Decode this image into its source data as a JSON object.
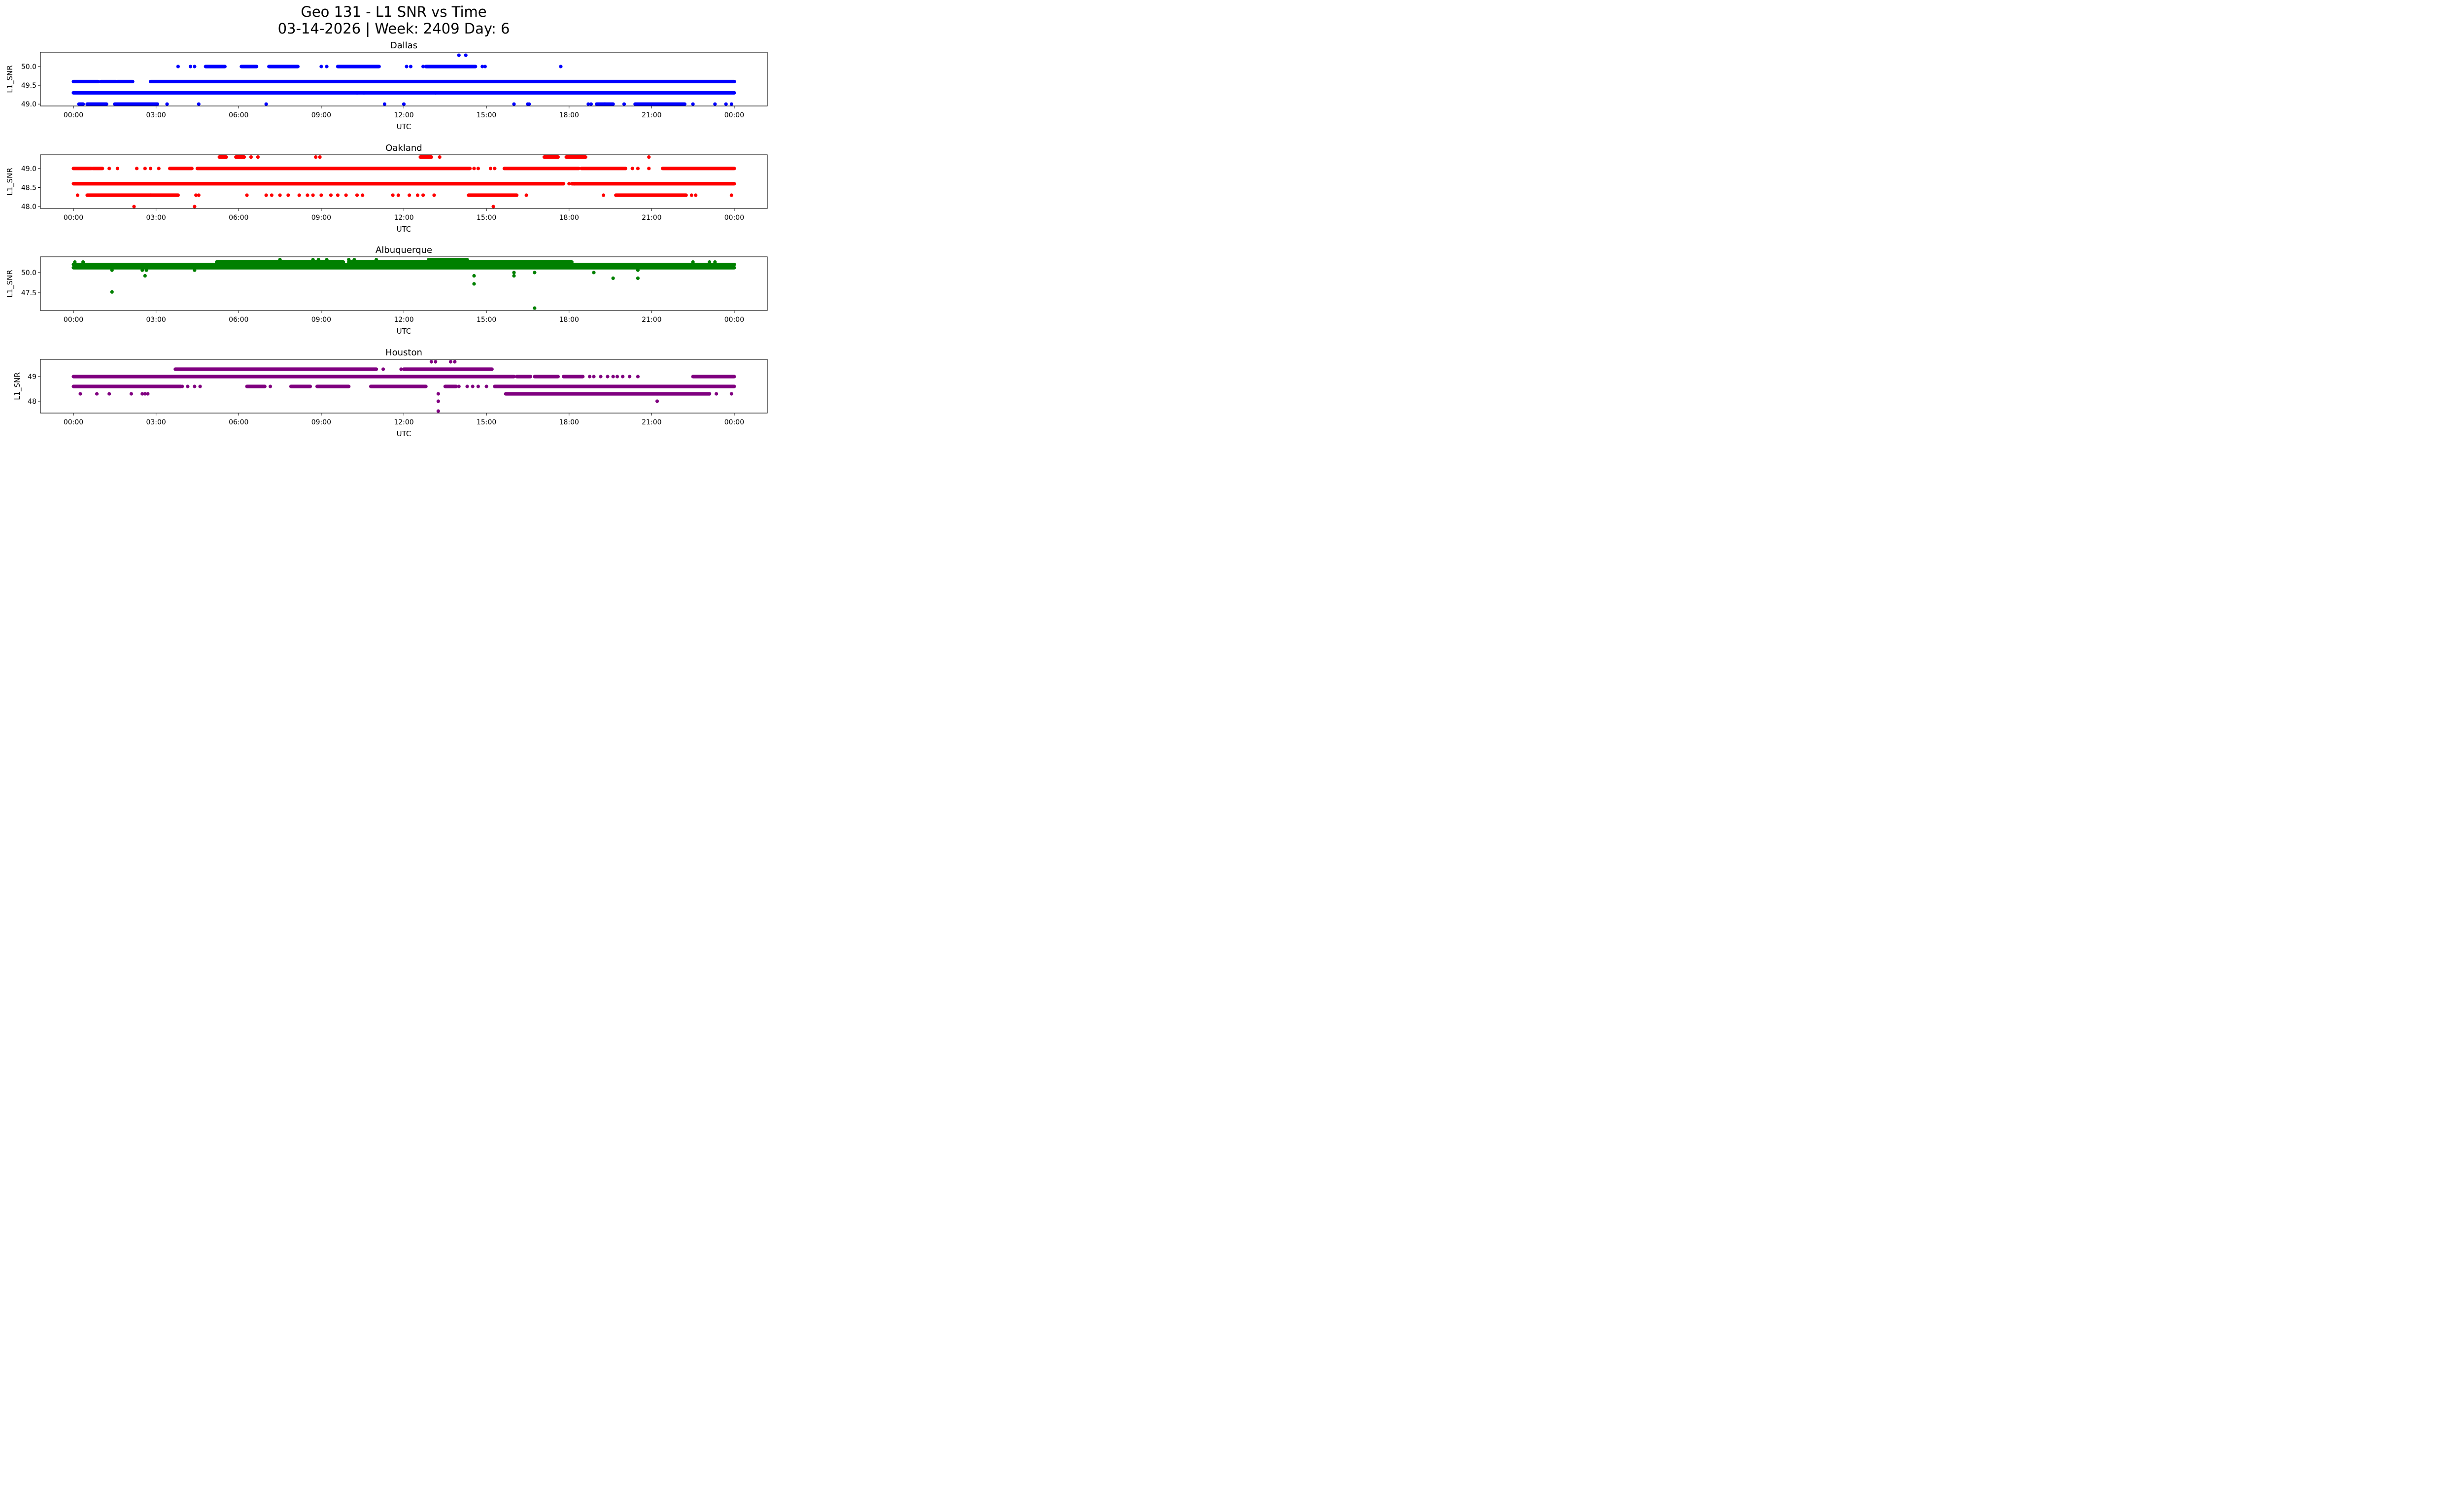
{
  "chart_data": {
    "type": "scatter",
    "title": "Geo 131 - L1 SNR vs Time",
    "subtitle": "03-14-2026 | Week: 2409 Day: 6",
    "x_unit": "hours UTC",
    "panels": [
      {
        "name": "Dallas",
        "color": "#0000ff",
        "xlabel": "UTC",
        "ylabel": "L1_SNR",
        "ylim": [
          48.95,
          50.38
        ],
        "yticks": [
          49.0,
          49.5,
          50.0
        ],
        "ytick_labels": [
          "49.0",
          "49.5",
          "50.0"
        ],
        "runs": [
          {
            "value": 49.3,
            "start": 0.0,
            "end": 24.0
          },
          {
            "value": 49.6,
            "start": 0.0,
            "end": 0.9
          },
          {
            "value": 49.6,
            "start": 1.0,
            "end": 1.55
          },
          {
            "value": 49.6,
            "start": 1.6,
            "end": 2.15
          },
          {
            "value": 49.6,
            "start": 2.8,
            "end": 24.0
          },
          {
            "value": 49.0,
            "start": 0.2,
            "end": 0.35
          },
          {
            "value": 49.0,
            "start": 0.5,
            "end": 1.2
          },
          {
            "value": 49.0,
            "start": 1.5,
            "end": 3.05
          },
          {
            "value": 50.0,
            "start": 4.8,
            "end": 5.5
          },
          {
            "value": 50.0,
            "start": 6.1,
            "end": 6.65
          },
          {
            "value": 50.0,
            "start": 7.1,
            "end": 8.15
          },
          {
            "value": 50.0,
            "start": 9.6,
            "end": 11.1
          },
          {
            "value": 50.0,
            "start": 12.8,
            "end": 14.6
          },
          {
            "value": 49.0,
            "start": 19.0,
            "end": 19.6
          },
          {
            "value": 49.0,
            "start": 20.4,
            "end": 22.2
          }
        ],
        "points": [
          {
            "x": 3.8,
            "y": 50.0
          },
          {
            "x": 4.25,
            "y": 50.0
          },
          {
            "x": 4.4,
            "y": 50.0
          },
          {
            "x": 9.0,
            "y": 50.0
          },
          {
            "x": 9.2,
            "y": 50.0
          },
          {
            "x": 12.1,
            "y": 50.0
          },
          {
            "x": 12.25,
            "y": 50.0
          },
          {
            "x": 12.7,
            "y": 50.0
          },
          {
            "x": 14.85,
            "y": 50.0
          },
          {
            "x": 14.95,
            "y": 50.0
          },
          {
            "x": 17.7,
            "y": 50.0
          },
          {
            "x": 14.0,
            "y": 50.3
          },
          {
            "x": 14.25,
            "y": 50.3
          },
          {
            "x": 3.4,
            "y": 49.0
          },
          {
            "x": 4.55,
            "y": 49.0
          },
          {
            "x": 7.0,
            "y": 49.0
          },
          {
            "x": 11.3,
            "y": 49.0
          },
          {
            "x": 12.0,
            "y": 49.0
          },
          {
            "x": 16.0,
            "y": 49.0
          },
          {
            "x": 16.5,
            "y": 49.0
          },
          {
            "x": 16.55,
            "y": 49.0
          },
          {
            "x": 18.7,
            "y": 49.0
          },
          {
            "x": 18.8,
            "y": 49.0
          },
          {
            "x": 19.3,
            "y": 49.0
          },
          {
            "x": 20.0,
            "y": 49.0
          },
          {
            "x": 22.5,
            "y": 49.0
          },
          {
            "x": 23.3,
            "y": 49.0
          },
          {
            "x": 23.7,
            "y": 49.0
          },
          {
            "x": 23.9,
            "y": 49.0
          },
          {
            "x": 10.3,
            "y": 49.3
          },
          {
            "x": 10.55,
            "y": 49.3
          },
          {
            "x": 13.15,
            "y": 49.3
          }
        ]
      },
      {
        "name": "Oakland",
        "color": "#ff0000",
        "xlabel": "UTC",
        "ylabel": "L1_SNR",
        "ylim": [
          47.95,
          49.36
        ],
        "yticks": [
          48.0,
          48.5,
          49.0
        ],
        "ytick_labels": [
          "48.0",
          "48.5",
          "49.0"
        ],
        "runs": [
          {
            "value": 48.6,
            "start": 0.0,
            "end": 17.8
          },
          {
            "value": 48.6,
            "start": 18.1,
            "end": 24.0
          },
          {
            "value": 49.0,
            "start": 0.0,
            "end": 0.65
          },
          {
            "value": 49.0,
            "start": 0.7,
            "end": 1.05
          },
          {
            "value": 49.0,
            "start": 3.5,
            "end": 4.3
          },
          {
            "value": 49.0,
            "start": 4.5,
            "end": 14.4
          },
          {
            "value": 49.0,
            "start": 15.65,
            "end": 18.35
          },
          {
            "value": 49.0,
            "start": 18.45,
            "end": 20.05
          },
          {
            "value": 49.0,
            "start": 21.4,
            "end": 24.0
          },
          {
            "value": 48.3,
            "start": 0.5,
            "end": 2.8
          },
          {
            "value": 48.3,
            "start": 2.8,
            "end": 3.8
          },
          {
            "value": 48.3,
            "start": 14.35,
            "end": 16.1
          },
          {
            "value": 48.3,
            "start": 19.7,
            "end": 22.25
          },
          {
            "value": 49.3,
            "start": 5.3,
            "end": 5.55
          },
          {
            "value": 49.3,
            "start": 5.9,
            "end": 6.2
          },
          {
            "value": 49.3,
            "start": 12.6,
            "end": 13.0
          },
          {
            "value": 49.3,
            "start": 17.1,
            "end": 17.6
          },
          {
            "value": 49.3,
            "start": 17.9,
            "end": 18.6
          }
        ],
        "points": [
          {
            "x": 1.3,
            "y": 49.0
          },
          {
            "x": 1.6,
            "y": 49.0
          },
          {
            "x": 2.3,
            "y": 49.0
          },
          {
            "x": 2.6,
            "y": 49.0
          },
          {
            "x": 2.8,
            "y": 49.0
          },
          {
            "x": 3.1,
            "y": 49.0
          },
          {
            "x": 14.55,
            "y": 49.0
          },
          {
            "x": 14.7,
            "y": 49.0
          },
          {
            "x": 15.15,
            "y": 49.0
          },
          {
            "x": 15.3,
            "y": 49.0
          },
          {
            "x": 20.3,
            "y": 49.0
          },
          {
            "x": 20.5,
            "y": 49.0
          },
          {
            "x": 20.9,
            "y": 49.0
          },
          {
            "x": 0.15,
            "y": 48.3
          },
          {
            "x": 4.45,
            "y": 48.3
          },
          {
            "x": 4.55,
            "y": 48.3
          },
          {
            "x": 6.3,
            "y": 48.3
          },
          {
            "x": 7.0,
            "y": 48.3
          },
          {
            "x": 7.2,
            "y": 48.3
          },
          {
            "x": 7.5,
            "y": 48.3
          },
          {
            "x": 7.8,
            "y": 48.3
          },
          {
            "x": 8.2,
            "y": 48.3
          },
          {
            "x": 8.5,
            "y": 48.3
          },
          {
            "x": 8.7,
            "y": 48.3
          },
          {
            "x": 9.0,
            "y": 48.3
          },
          {
            "x": 9.35,
            "y": 48.3
          },
          {
            "x": 9.6,
            "y": 48.3
          },
          {
            "x": 9.9,
            "y": 48.3
          },
          {
            "x": 10.3,
            "y": 48.3
          },
          {
            "x": 10.5,
            "y": 48.3
          },
          {
            "x": 11.6,
            "y": 48.3
          },
          {
            "x": 11.8,
            "y": 48.3
          },
          {
            "x": 12.2,
            "y": 48.3
          },
          {
            "x": 12.5,
            "y": 48.3
          },
          {
            "x": 12.7,
            "y": 48.3
          },
          {
            "x": 13.1,
            "y": 48.3
          },
          {
            "x": 16.45,
            "y": 48.3
          },
          {
            "x": 19.25,
            "y": 48.3
          },
          {
            "x": 22.45,
            "y": 48.3
          },
          {
            "x": 22.6,
            "y": 48.3
          },
          {
            "x": 23.9,
            "y": 48.3
          },
          {
            "x": 18.2,
            "y": 48.6
          },
          {
            "x": 18.0,
            "y": 48.6
          },
          {
            "x": 2.2,
            "y": 48.0
          },
          {
            "x": 4.4,
            "y": 48.0
          },
          {
            "x": 15.25,
            "y": 48.0
          },
          {
            "x": 8.8,
            "y": 49.3
          },
          {
            "x": 8.95,
            "y": 49.3
          },
          {
            "x": 13.3,
            "y": 49.3
          },
          {
            "x": 20.9,
            "y": 49.3
          },
          {
            "x": 6.45,
            "y": 49.3
          },
          {
            "x": 6.7,
            "y": 49.3
          }
        ]
      },
      {
        "name": "Albuquerque",
        "color": "#008000",
        "xlabel": "UTC",
        "ylabel": "L1_SNR",
        "ylim": [
          45.3,
          51.95
        ],
        "yticks": [
          47.5,
          50.0
        ],
        "ytick_labels": [
          "47.5",
          "50.0"
        ],
        "runs": [
          {
            "value": 50.6,
            "start": 0.0,
            "end": 24.0
          },
          {
            "value": 51.0,
            "start": 0.0,
            "end": 24.0
          },
          {
            "value": 51.3,
            "start": 5.2,
            "end": 9.8
          },
          {
            "value": 51.3,
            "start": 10.0,
            "end": 18.1
          },
          {
            "value": 51.6,
            "start": 12.9,
            "end": 14.3
          }
        ],
        "points": [
          {
            "x": 0.05,
            "y": 51.3
          },
          {
            "x": 0.35,
            "y": 51.3
          },
          {
            "x": 1.4,
            "y": 50.3
          },
          {
            "x": 2.5,
            "y": 50.3
          },
          {
            "x": 2.65,
            "y": 50.3
          },
          {
            "x": 4.4,
            "y": 50.3
          },
          {
            "x": 7.5,
            "y": 51.6
          },
          {
            "x": 8.7,
            "y": 51.6
          },
          {
            "x": 8.9,
            "y": 51.6
          },
          {
            "x": 9.2,
            "y": 51.6
          },
          {
            "x": 10.0,
            "y": 51.6
          },
          {
            "x": 10.2,
            "y": 51.6
          },
          {
            "x": 11.0,
            "y": 51.6
          },
          {
            "x": 1.4,
            "y": 47.6
          },
          {
            "x": 2.6,
            "y": 49.6
          },
          {
            "x": 14.55,
            "y": 49.6
          },
          {
            "x": 14.55,
            "y": 48.6
          },
          {
            "x": 16.0,
            "y": 50.0
          },
          {
            "x": 16.0,
            "y": 49.6
          },
          {
            "x": 16.75,
            "y": 50.0
          },
          {
            "x": 16.75,
            "y": 45.6
          },
          {
            "x": 18.9,
            "y": 50.0
          },
          {
            "x": 19.6,
            "y": 49.3
          },
          {
            "x": 20.5,
            "y": 49.3
          },
          {
            "x": 20.5,
            "y": 50.3
          },
          {
            "x": 22.5,
            "y": 51.3
          },
          {
            "x": 23.1,
            "y": 51.3
          },
          {
            "x": 23.3,
            "y": 51.3
          }
        ]
      },
      {
        "name": "Houston",
        "color": "#800080",
        "xlabel": "UTC",
        "ylabel": "L1_SNR",
        "ylim": [
          47.52,
          49.7
        ],
        "yticks": [
          48,
          49
        ],
        "ytick_labels": [
          "48",
          "49"
        ],
        "runs": [
          {
            "value": 49.0,
            "start": 0.0,
            "end": 16.0
          },
          {
            "value": 49.0,
            "start": 16.1,
            "end": 16.6
          },
          {
            "value": 49.0,
            "start": 16.75,
            "end": 17.6
          },
          {
            "value": 49.0,
            "start": 17.8,
            "end": 18.5
          },
          {
            "value": 49.0,
            "start": 22.5,
            "end": 24.0
          },
          {
            "value": 48.6,
            "start": 0.0,
            "end": 3.9
          },
          {
            "value": 48.6,
            "start": 6.3,
            "end": 6.95
          },
          {
            "value": 48.6,
            "start": 7.9,
            "end": 8.6
          },
          {
            "value": 48.6,
            "start": 8.85,
            "end": 10.0
          },
          {
            "value": 48.6,
            "start": 10.8,
            "end": 12.8
          },
          {
            "value": 48.6,
            "start": 15.3,
            "end": 24.0
          },
          {
            "value": 48.6,
            "start": 13.5,
            "end": 13.9
          },
          {
            "value": 49.3,
            "start": 3.7,
            "end": 11.0
          },
          {
            "value": 49.3,
            "start": 12.0,
            "end": 15.2
          },
          {
            "value": 48.3,
            "start": 15.7,
            "end": 23.1
          }
        ],
        "points": [
          {
            "x": 0.25,
            "y": 48.3
          },
          {
            "x": 0.85,
            "y": 48.3
          },
          {
            "x": 1.3,
            "y": 48.3
          },
          {
            "x": 2.1,
            "y": 48.3
          },
          {
            "x": 2.5,
            "y": 48.3
          },
          {
            "x": 2.6,
            "y": 48.3
          },
          {
            "x": 2.7,
            "y": 48.3
          },
          {
            "x": 3.95,
            "y": 48.6
          },
          {
            "x": 4.15,
            "y": 48.6
          },
          {
            "x": 4.4,
            "y": 48.6
          },
          {
            "x": 4.6,
            "y": 48.6
          },
          {
            "x": 7.15,
            "y": 48.6
          },
          {
            "x": 14.0,
            "y": 48.6
          },
          {
            "x": 14.3,
            "y": 48.6
          },
          {
            "x": 14.5,
            "y": 48.6
          },
          {
            "x": 14.7,
            "y": 48.6
          },
          {
            "x": 15.0,
            "y": 48.6
          },
          {
            "x": 11.25,
            "y": 49.3
          },
          {
            "x": 11.9,
            "y": 49.3
          },
          {
            "x": 13.0,
            "y": 49.6
          },
          {
            "x": 13.15,
            "y": 49.6
          },
          {
            "x": 13.7,
            "y": 49.6
          },
          {
            "x": 13.85,
            "y": 49.6
          },
          {
            "x": 13.25,
            "y": 48.3
          },
          {
            "x": 13.25,
            "y": 48.0
          },
          {
            "x": 13.25,
            "y": 47.6
          },
          {
            "x": 21.2,
            "y": 48.0
          },
          {
            "x": 18.75,
            "y": 49.0
          },
          {
            "x": 18.9,
            "y": 49.0
          },
          {
            "x": 19.15,
            "y": 49.0
          },
          {
            "x": 19.4,
            "y": 49.0
          },
          {
            "x": 19.6,
            "y": 49.0
          },
          {
            "x": 19.75,
            "y": 49.0
          },
          {
            "x": 19.95,
            "y": 49.0
          },
          {
            "x": 20.2,
            "y": 49.0
          },
          {
            "x": 20.5,
            "y": 49.0
          },
          {
            "x": 23.1,
            "y": 48.3
          },
          {
            "x": 23.35,
            "y": 48.3
          },
          {
            "x": 23.9,
            "y": 48.3
          }
        ]
      }
    ],
    "xticks": [
      0,
      3,
      6,
      9,
      12,
      15,
      18,
      21,
      24
    ],
    "xtick_labels": [
      "00:00",
      "03:00",
      "06:00",
      "09:00",
      "12:00",
      "15:00",
      "18:00",
      "21:00",
      "00:00"
    ],
    "xlim": [
      -1.2,
      25.2
    ],
    "grid": false,
    "legend": "none"
  }
}
